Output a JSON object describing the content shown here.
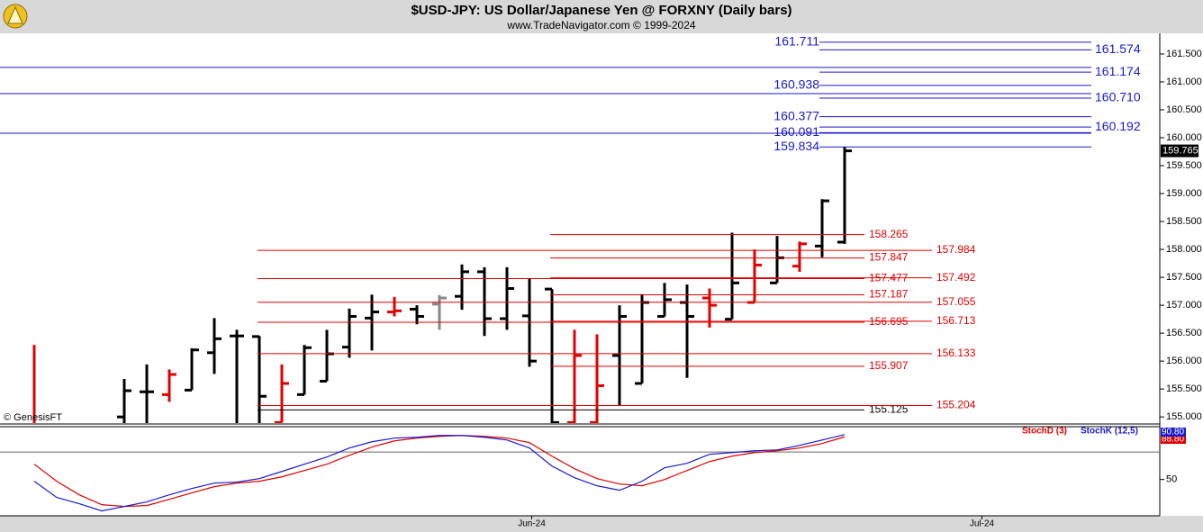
{
  "header": {
    "title": "$USD-JPY:  US Dollar/Japanese Yen @ FORXNY  (Daily bars)",
    "subtitle": "www.TradeNavigator.com © 1999-2024"
  },
  "chart_data": [
    {
      "type": "ohlc",
      "ylim": [
        154.89,
        161.87
      ],
      "yticks": [
        {
          "value": 155,
          "label": "155.000"
        },
        {
          "value": 155.5,
          "label": "155.500"
        },
        {
          "value": 156,
          "label": "156.000"
        },
        {
          "value": 156.5,
          "label": "156.500"
        },
        {
          "value": 157,
          "label": "157.000"
        },
        {
          "value": 157.5,
          "label": "157.500"
        },
        {
          "value": 158,
          "label": "158.000"
        },
        {
          "value": 158.5,
          "label": "158.500"
        },
        {
          "value": 159,
          "label": "159.000"
        },
        {
          "value": 159.5,
          "label": "159.500"
        },
        {
          "value": 160,
          "label": "160.000"
        },
        {
          "value": 160.5,
          "label": "160.500"
        },
        {
          "value": 161,
          "label": "161.000"
        },
        {
          "value": 161.5,
          "label": "161.500"
        }
      ],
      "open": [
        154.8,
        null,
        null,
        null,
        155.0,
        155.45,
        155.4,
        155.48,
        156.15,
        156.45,
        156.44,
        154.9,
        155.4,
        155.64,
        156.25,
        156.77,
        156.88,
        156.93,
        157.02,
        157.16,
        157.6,
        156.76,
        156.81,
        157.29,
        154.9,
        154.9,
        156.1,
        155.6,
        156.8,
        157.05,
        157.13,
        156.75,
        157.05,
        157.4,
        157.7,
        158.06,
        158.13
      ],
      "high": [
        156.29,
        null,
        null,
        null,
        155.68,
        155.94,
        155.85,
        156.23,
        156.77,
        156.56,
        156.45,
        155.94,
        156.29,
        156.56,
        156.94,
        157.19,
        157.15,
        157.0,
        157.18,
        157.73,
        157.68,
        157.68,
        157.48,
        157.29,
        156.56,
        156.48,
        157.0,
        157.2,
        157.4,
        157.37,
        157.3,
        158.3,
        158.0,
        158.24,
        158.14,
        158.9,
        159.83
      ],
      "low": [
        154.6,
        null,
        null,
        null,
        154.7,
        154.7,
        155.27,
        155.48,
        155.77,
        154.7,
        154.7,
        154.9,
        155.4,
        155.64,
        156.06,
        156.19,
        156.8,
        156.66,
        156.56,
        156.92,
        156.45,
        156.56,
        155.9,
        154.7,
        154.7,
        154.7,
        155.2,
        155.6,
        156.8,
        155.7,
        156.6,
        156.75,
        157.05,
        157.4,
        157.6,
        157.86,
        158.1
      ],
      "close": [
        154.7,
        null,
        null,
        null,
        155.47,
        155.45,
        155.76,
        156.2,
        156.4,
        156.45,
        155.37,
        155.6,
        156.24,
        156.13,
        156.8,
        156.88,
        156.9,
        156.8,
        157.13,
        157.6,
        156.76,
        157.3,
        156.0,
        154.9,
        156.1,
        155.56,
        156.8,
        157.05,
        157.1,
        156.8,
        157.0,
        157.4,
        157.72,
        157.85,
        158.1,
        158.87,
        159.765
      ],
      "colors": [
        "#e00000",
        null,
        null,
        null,
        "#000000",
        "#000000",
        "#e00000",
        "#000000",
        "#000000",
        "#000000",
        "#000000",
        "#e00000",
        "#000000",
        "#000000",
        "#000000",
        "#000000",
        "#e00000",
        "#000000",
        "#888888",
        "#000000",
        "#000000",
        "#000000",
        "#000000",
        "#000000",
        "#e00000",
        "#e00000",
        "#000000",
        "#000000",
        "#000000",
        "#000000",
        "#e00000",
        "#000000",
        "#e00000",
        "#000000",
        "#e00000",
        "#000000",
        "#000000"
      ],
      "full_lines": [
        161.26,
        160.79,
        160.08
      ],
      "levels": [
        {
          "value": 161.711,
          "side": "left",
          "color": "#1a1acc"
        },
        {
          "value": 160.938,
          "side": "left",
          "color": "#1a1acc"
        },
        {
          "value": 160.377,
          "side": "left",
          "color": "#1a1acc"
        },
        {
          "value": 160.091,
          "side": "left",
          "color": "#1a1acc"
        },
        {
          "value": 159.834,
          "side": "left",
          "color": "#1a1acc"
        },
        {
          "value": 161.574,
          "side": "right",
          "color": "#1a1acc"
        },
        {
          "value": 161.174,
          "side": "right",
          "color": "#1a1acc"
        },
        {
          "value": 160.71,
          "label": "160.710",
          "side": "right",
          "color": "#1a1acc"
        },
        {
          "value": 160.192,
          "side": "right",
          "color": "#1a1acc"
        },
        {
          "value": 158.265,
          "side": "left",
          "color": "#e00000"
        },
        {
          "value": 157.847,
          "side": "left",
          "color": "#e00000"
        },
        {
          "value": 157.477,
          "side": "left",
          "color": "#e00000"
        },
        {
          "value": 157.187,
          "side": "left",
          "color": "#e00000"
        },
        {
          "value": 156.695,
          "side": "left",
          "color": "#e00000"
        },
        {
          "value": 155.907,
          "side": "left",
          "color": "#e00000"
        },
        {
          "value": 155.125,
          "side": "left",
          "color": "#000000"
        },
        {
          "value": 157.984,
          "side": "right",
          "color": "#e00000"
        },
        {
          "value": 157.492,
          "side": "right",
          "color": "#e00000"
        },
        {
          "value": 157.055,
          "side": "right",
          "color": "#e00000"
        },
        {
          "value": 156.713,
          "side": "right",
          "color": "#e00000"
        },
        {
          "value": 156.133,
          "side": "right",
          "color": "#e00000"
        },
        {
          "value": 155.204,
          "side": "right",
          "color": "#e00000"
        }
      ],
      "last_price": 159.765,
      "watermark": "© GenesisFT"
    },
    {
      "type": "line",
      "ylim": [
        17,
        98
      ],
      "yticks": [
        50
      ],
      "ref_line": 75,
      "xticks": [
        {
          "value": 22.1,
          "label": "Jun-24"
        },
        {
          "value": 42.1,
          "label": "Jul-24"
        }
      ],
      "series": [
        {
          "name": "StochD (3)",
          "color": "#e00000",
          "last_label": "88.80",
          "values": [
            63.9,
            48.4,
            36.1,
            27.1,
            25.5,
            26.3,
            32.0,
            37.8,
            43.5,
            46.7,
            48.4,
            52.4,
            58.2,
            63.9,
            72.0,
            79.4,
            85.1,
            87.6,
            89.2,
            90.0,
            89.2,
            87.6,
            83.5,
            71.2,
            59.8,
            50.8,
            45.9,
            44.3,
            50.0,
            58.2,
            66.3,
            71.2,
            74.5,
            76.1,
            78.6,
            82.7,
            88.8
          ]
        },
        {
          "name": "StochK (12,5)",
          "color": "#1a1acc",
          "last_label": "90.80",
          "values": [
            48.4,
            33.7,
            28.0,
            21.4,
            25.5,
            29.6,
            36.1,
            41.8,
            46.7,
            47.6,
            50.8,
            57.3,
            63.9,
            70.4,
            78.6,
            84.3,
            87.6,
            88.4,
            90.0,
            90.0,
            88.4,
            85.9,
            78.6,
            62.2,
            51.6,
            44.3,
            40.2,
            48.4,
            60.6,
            64.7,
            72.9,
            74.5,
            76.1,
            76.9,
            81.0,
            85.9,
            90.8
          ]
        }
      ]
    }
  ]
}
